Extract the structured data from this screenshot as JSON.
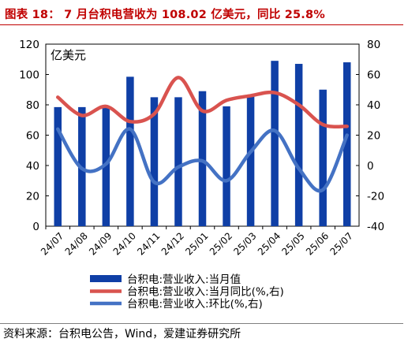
{
  "title": "图表 18： 7 月台积电营收为 108.02 亿美元，同比 25.8%",
  "source": "资料来源：台积电公告，Wind，爱建证券研究所",
  "chart_data": {
    "type": "bar+line",
    "unit_label": "亿美元",
    "categories": [
      "24/07",
      "24/08",
      "24/09",
      "24/10",
      "24/11",
      "24/12",
      "25/01",
      "25/02",
      "25/03",
      "25/04",
      "25/05",
      "25/06",
      "25/07"
    ],
    "y_left": {
      "min": 0,
      "max": 120,
      "ticks": [
        0,
        20,
        40,
        60,
        80,
        100,
        120
      ]
    },
    "y_right": {
      "min": -40,
      "max": 80,
      "ticks": [
        -40,
        -20,
        0,
        20,
        40,
        60,
        80
      ]
    },
    "grid": false,
    "legend_position": "bottom",
    "series": [
      {
        "name": "台积电:营业收入:当月值",
        "type": "bar",
        "axis": "left",
        "color": "#0f3fa6",
        "values": [
          78.5,
          78.5,
          78.5,
          98.5,
          85.0,
          85.0,
          89.0,
          79.0,
          86.0,
          109.0,
          107.0,
          90.0,
          108.02
        ]
      },
      {
        "name": "台积电:营业收入:当月同比(%,右)",
        "type": "line",
        "axis": "right",
        "color": "#d9534f",
        "values": [
          45,
          33,
          39,
          29,
          34,
          58,
          36,
          43,
          46,
          48,
          40,
          27,
          25.8
        ]
      },
      {
        "name": "台积电:营业收入:环比(%,右)",
        "type": "line",
        "axis": "right",
        "color": "#4472c4",
        "values": [
          24,
          -2,
          1,
          24,
          -11,
          -1,
          3,
          -10,
          9,
          23,
          -2,
          -16,
          20
        ]
      }
    ]
  }
}
